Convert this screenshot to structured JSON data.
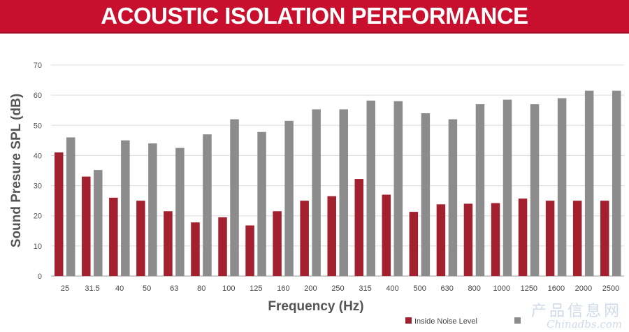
{
  "chart_data": {
    "type": "bar",
    "title": "ACOUSTIC ISOLATION PERFORMANCE",
    "xlabel": "Frequency (Hz)",
    "ylabel": "Sound Presure SPL (dB)",
    "ylim": [
      0,
      70
    ],
    "yticks": [
      0,
      10,
      20,
      30,
      40,
      50,
      60,
      70
    ],
    "grid": true,
    "legend_position": "bottom-right",
    "categories": [
      "25",
      "31.5",
      "40",
      "50",
      "63",
      "80",
      "100",
      "125",
      "160",
      "200",
      "250",
      "315",
      "400",
      "500",
      "630",
      "800",
      "1000",
      "1250",
      "1600",
      "2000",
      "2500"
    ],
    "series": [
      {
        "name": "Inside Noise Level",
        "color": "#a3202f",
        "values": [
          41,
          33,
          26,
          25,
          21.5,
          17.8,
          19.5,
          16.8,
          21.5,
          25,
          26.5,
          32.2,
          27,
          21.3,
          23.8,
          24,
          24.2,
          25.7,
          25,
          25,
          25
        ]
      },
      {
        "name": "",
        "color": "#8c8c8c",
        "values": [
          46,
          35.2,
          45,
          44,
          42.5,
          47,
          52,
          47.8,
          51.5,
          55.3,
          55.3,
          58.2,
          58,
          54,
          52,
          57,
          58.5,
          57,
          59,
          61.5,
          61.5
        ]
      }
    ]
  },
  "watermark": {
    "cn": "产品信息网",
    "en": "Chinadbs.com"
  }
}
